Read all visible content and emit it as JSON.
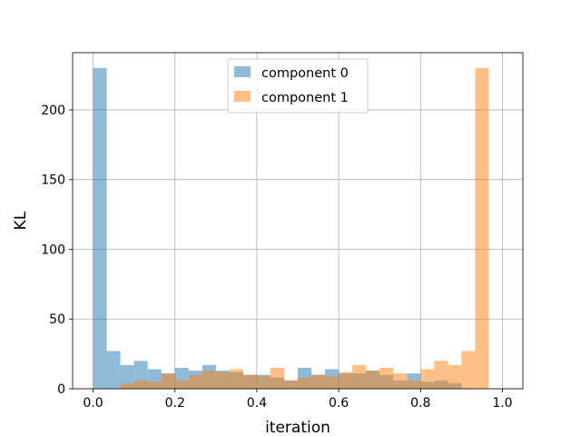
{
  "chart_data": {
    "type": "histogram",
    "title": "",
    "xlabel": "iteration",
    "ylabel": "KL",
    "xlim": [
      -0.05,
      1.05
    ],
    "ylim": [
      0,
      241
    ],
    "x_ticks": [
      "0.0",
      "0.2",
      "0.4",
      "0.6",
      "0.8",
      "1.0"
    ],
    "y_ticks": [
      "0",
      "50",
      "100",
      "150",
      "200"
    ],
    "grid": true,
    "legend_position": "top-center",
    "bin_edges": [
      0.0,
      0.0333,
      0.0667,
      0.1,
      0.1333,
      0.1667,
      0.2,
      0.2333,
      0.2667,
      0.3,
      0.3333,
      0.3667,
      0.4,
      0.4333,
      0.4667,
      0.5,
      0.5333,
      0.5667,
      0.6,
      0.6333,
      0.6667,
      0.7,
      0.7333,
      0.7667,
      0.8,
      0.8333,
      0.8667,
      0.9,
      0.9333,
      0.9667,
      1.0
    ],
    "series": [
      {
        "name": "component 0",
        "color": "#1f77b4",
        "alpha": 0.5,
        "values": [
          230,
          27,
          17,
          20,
          14,
          11,
          15,
          13,
          17,
          13,
          12,
          10,
          10,
          8,
          6,
          15,
          10,
          14,
          11,
          11,
          13,
          10,
          6,
          11,
          5,
          6,
          4,
          0,
          0,
          0
        ]
      },
      {
        "name": "component 1",
        "color": "#ff7f0e",
        "alpha": 0.5,
        "values": [
          0,
          0,
          4,
          6,
          5,
          11,
          6,
          10,
          13,
          12,
          14,
          10,
          9,
          15,
          6,
          8,
          10,
          9,
          12,
          17,
          13,
          15,
          11,
          6,
          14,
          20,
          17,
          27,
          230,
          0
        ]
      }
    ]
  }
}
